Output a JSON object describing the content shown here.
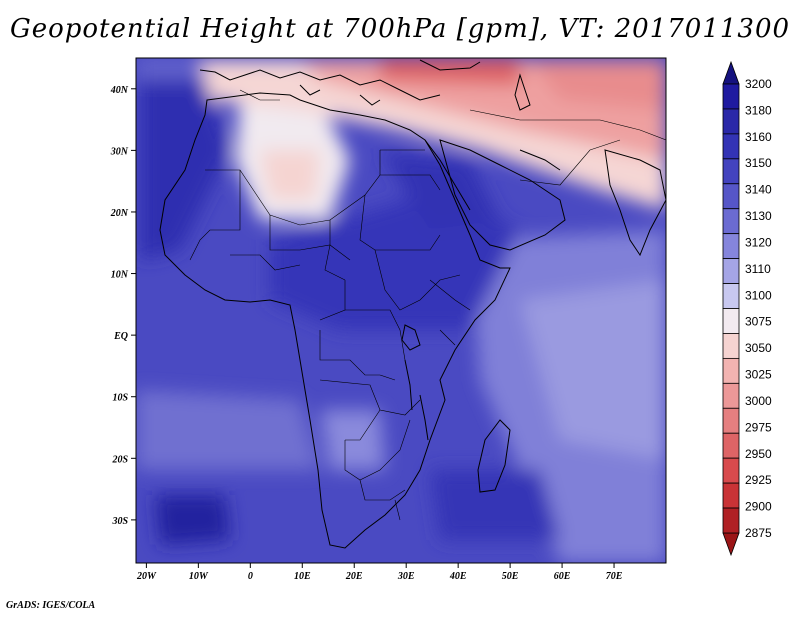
{
  "title": "Geopotential Height at 700hPa [gpm], VT: 2017011300",
  "credit": "GrADS: IGES/COLA",
  "map": {
    "lon_range": [
      -22,
      80
    ],
    "lat_range": [
      -37,
      45
    ],
    "x_ticks": [
      {
        "value": -20,
        "label": "20W"
      },
      {
        "value": -10,
        "label": "10W"
      },
      {
        "value": 0,
        "label": "0"
      },
      {
        "value": 10,
        "label": "10E"
      },
      {
        "value": 20,
        "label": "20E"
      },
      {
        "value": 30,
        "label": "30E"
      },
      {
        "value": 40,
        "label": "40E"
      },
      {
        "value": 50,
        "label": "50E"
      },
      {
        "value": 60,
        "label": "60E"
      },
      {
        "value": 70,
        "label": "70E"
      }
    ],
    "y_ticks": [
      {
        "value": 40,
        "label": "40N"
      },
      {
        "value": 30,
        "label": "30N"
      },
      {
        "value": 20,
        "label": "20N"
      },
      {
        "value": 10,
        "label": "10N"
      },
      {
        "value": 0,
        "label": "EQ"
      },
      {
        "value": -10,
        "label": "10S"
      },
      {
        "value": -20,
        "label": "20S"
      },
      {
        "value": -30,
        "label": "30S"
      }
    ]
  },
  "colorbar": {
    "levels": [
      {
        "label": "3200",
        "color": "#1f1aa0"
      },
      {
        "label": "3180",
        "color": "#2a28a8"
      },
      {
        "label": "3160",
        "color": "#3333b5"
      },
      {
        "label": "3150",
        "color": "#4343bf"
      },
      {
        "label": "3140",
        "color": "#5656c8"
      },
      {
        "label": "3130",
        "color": "#6b6bd2"
      },
      {
        "label": "3120",
        "color": "#8585dc"
      },
      {
        "label": "3110",
        "color": "#a5a5e6"
      },
      {
        "label": "3100",
        "color": "#c8c8f0"
      },
      {
        "label": "3075",
        "color": "#f2eaf0"
      },
      {
        "label": "3050",
        "color": "#f5d3d1"
      },
      {
        "label": "3025",
        "color": "#f2b3b1"
      },
      {
        "label": "3000",
        "color": "#ec9898"
      },
      {
        "label": "2975",
        "color": "#e57f80"
      },
      {
        "label": "2950",
        "color": "#de6466"
      },
      {
        "label": "2925",
        "color": "#d84a4d"
      },
      {
        "label": "2900",
        "color": "#c93336"
      },
      {
        "label": "2875",
        "color": "#b02024"
      }
    ],
    "top_arrow_color": "#15127f",
    "bottom_arrow_color": "#9b1517"
  }
}
